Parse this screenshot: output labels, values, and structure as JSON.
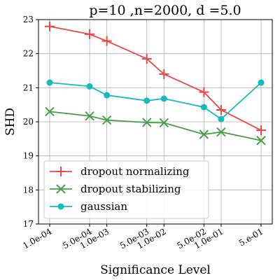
{
  "chart_data": {
    "type": "line",
    "title": "p=10 ,n=2000, d =5.0",
    "xlabel": "Significance Level",
    "ylabel": "SHD",
    "x": [
      0.0001,
      0.0005,
      0.001,
      0.005,
      0.01,
      0.05,
      0.1,
      0.5
    ],
    "x_tick_labels": [
      "1.0e-04",
      "5.0e-04",
      "1.0e-03",
      "5.0e-03",
      "1.0e-02",
      "5.0e-02",
      "1.0e-01",
      "5.e-01"
    ],
    "x_scale": "log",
    "ylim": [
      17,
      23
    ],
    "y_ticks": [
      17,
      18,
      19,
      20,
      21,
      22,
      23
    ],
    "grid": true,
    "legend_position": "lower-left",
    "series": [
      {
        "name": "dropout normalizing",
        "color": "#f04545",
        "marker": "plus",
        "values": [
          22.8,
          22.57,
          22.37,
          21.85,
          21.4,
          20.87,
          20.35,
          19.75
        ]
      },
      {
        "name": "dropout stabilizing",
        "color": "#4aa04a",
        "marker": "x",
        "values": [
          20.3,
          20.17,
          20.05,
          19.98,
          19.97,
          19.63,
          19.7,
          19.45
        ]
      },
      {
        "name": "gaussian",
        "color": "#12bcbc",
        "marker": "circle",
        "values": [
          21.15,
          21.04,
          20.78,
          20.62,
          20.68,
          20.43,
          20.08,
          21.15
        ]
      }
    ]
  }
}
